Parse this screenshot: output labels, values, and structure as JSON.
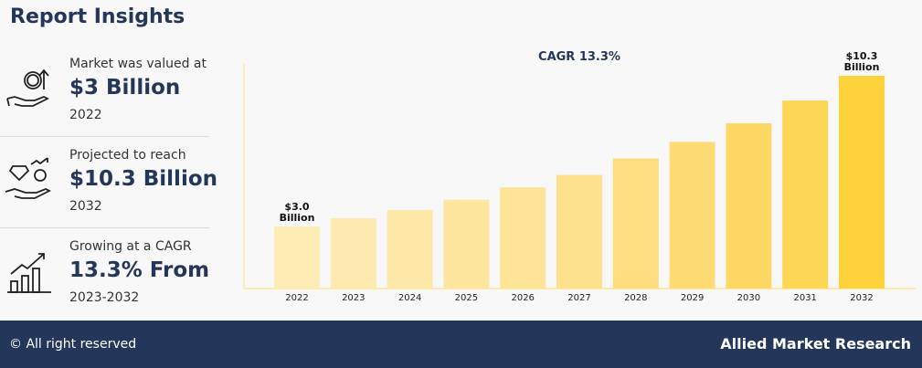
{
  "title": "Report Insights",
  "cards": [
    {
      "line1": "Market was valued at",
      "big": "$3 Billion",
      "line3": "2022",
      "icon": "money-hand-icon"
    },
    {
      "line1": "Projected to reach",
      "big": "$10.3 Billion",
      "line3": "2032",
      "icon": "diamond-hand-icon"
    },
    {
      "line1": "Growing at a CAGR",
      "big": "13.3% From",
      "line3": "2023-2032",
      "icon": "growth-chart-icon"
    }
  ],
  "footer": {
    "copyright": "© All right reserved",
    "brand": "Allied Market Research"
  },
  "chart_data": {
    "type": "bar",
    "title": "CAGR 13.3%",
    "categories": [
      "2022",
      "2023",
      "2024",
      "2025",
      "2026",
      "2027",
      "2028",
      "2029",
      "2030",
      "2031",
      "2032"
    ],
    "values": [
      3.0,
      3.4,
      3.8,
      4.3,
      4.9,
      5.5,
      6.3,
      7.1,
      8.0,
      9.1,
      10.3
    ],
    "data_labels": {
      "0": [
        "$3.0",
        "Billion"
      ],
      "10": [
        "$10.3",
        "Billion"
      ]
    },
    "colors": [
      "#feecb5",
      "#feeaaf",
      "#fee8a7",
      "#fee69f",
      "#fee497",
      "#fee18d",
      "#fedd7f",
      "#fedb73",
      "#fed865",
      "#fed655",
      "#fed23a"
    ],
    "ylim": [
      0,
      11
    ],
    "grid": false,
    "xlabel": "",
    "ylabel": ""
  }
}
